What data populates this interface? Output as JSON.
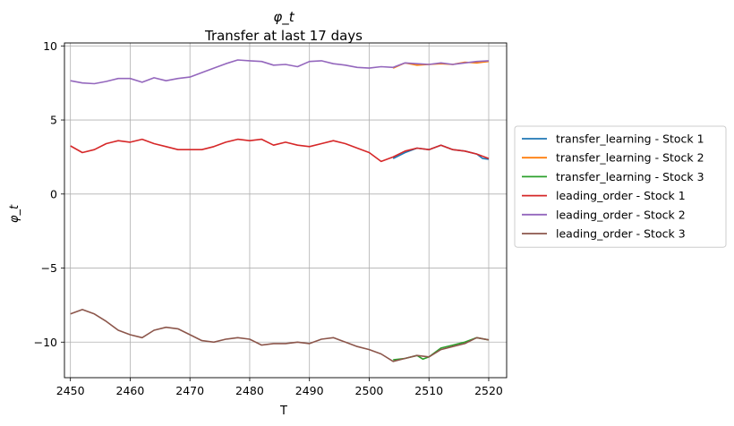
{
  "chart_data": {
    "type": "line",
    "title": "φ_t",
    "subtitle": "Transfer at last 17 days",
    "xlabel": "T",
    "ylabel": "φ_t",
    "xlim": [
      2449,
      2523
    ],
    "ylim": [
      -12.4,
      10.2
    ],
    "xticks": [
      2450,
      2460,
      2470,
      2480,
      2490,
      2500,
      2510,
      2520
    ],
    "yticks": [
      -10,
      -5,
      0,
      5,
      10
    ],
    "ytick_labels": [
      "−10",
      "−5",
      "0",
      "5",
      "10"
    ],
    "grid": true,
    "legend_position": "right-outside",
    "colors": {
      "transfer_learning_stock1": "#1f77b4",
      "transfer_learning_stock2": "#ff7f0e",
      "transfer_learning_stock3": "#2ca02c",
      "leading_order_stock1": "#d62728",
      "leading_order_stock2": "#9467bd",
      "leading_order_stock3": "#8c564b"
    },
    "x": [
      2450,
      2452,
      2454,
      2456,
      2458,
      2460,
      2462,
      2464,
      2466,
      2468,
      2470,
      2472,
      2474,
      2476,
      2478,
      2480,
      2482,
      2484,
      2486,
      2488,
      2490,
      2492,
      2494,
      2496,
      2498,
      2500,
      2502,
      2504,
      2506,
      2508,
      2510,
      2512,
      2514,
      2516,
      2518,
      2520
    ],
    "series": [
      {
        "name": "transfer_learning - Stock 1",
        "color": "#1f77b4",
        "x": [
          2504,
          2506,
          2508,
          2510,
          2512,
          2514,
          2516,
          2518,
          2519,
          2520
        ],
        "values": [
          2.4,
          2.8,
          3.1,
          3.0,
          3.3,
          3.0,
          2.9,
          2.7,
          2.4,
          2.35
        ]
      },
      {
        "name": "transfer_learning - Stock 2",
        "color": "#ff7f0e",
        "x": [
          2504,
          2506,
          2508,
          2510,
          2512,
          2514,
          2516,
          2518,
          2519,
          2520
        ],
        "values": [
          8.5,
          8.85,
          8.7,
          8.75,
          8.8,
          8.75,
          8.9,
          8.85,
          8.9,
          8.95
        ]
      },
      {
        "name": "transfer_learning - Stock 3",
        "color": "#2ca02c",
        "x": [
          2504,
          2506,
          2508,
          2509,
          2510,
          2512,
          2514,
          2516,
          2518,
          2520
        ],
        "values": [
          -11.2,
          -11.1,
          -10.9,
          -11.15,
          -11.0,
          -10.4,
          -10.2,
          -10.0,
          -9.7,
          -9.85
        ]
      },
      {
        "name": "leading_order - Stock 1",
        "color": "#d62728",
        "x": [
          2450,
          2452,
          2454,
          2456,
          2458,
          2460,
          2462,
          2464,
          2466,
          2468,
          2470,
          2472,
          2474,
          2476,
          2478,
          2480,
          2482,
          2484,
          2486,
          2488,
          2490,
          2492,
          2494,
          2496,
          2498,
          2500,
          2502,
          2504,
          2506,
          2508,
          2510,
          2512,
          2514,
          2516,
          2518,
          2520
        ],
        "values": [
          3.25,
          2.8,
          3.0,
          3.4,
          3.6,
          3.5,
          3.7,
          3.4,
          3.2,
          3.0,
          3.0,
          3.0,
          3.2,
          3.5,
          3.7,
          3.6,
          3.7,
          3.3,
          3.5,
          3.3,
          3.2,
          3.4,
          3.6,
          3.4,
          3.1,
          2.8,
          2.2,
          2.5,
          2.9,
          3.1,
          3.0,
          3.3,
          3.0,
          2.9,
          2.7,
          2.4
        ]
      },
      {
        "name": "leading_order - Stock 2",
        "color": "#9467bd",
        "x": [
          2450,
          2452,
          2454,
          2456,
          2458,
          2460,
          2462,
          2464,
          2466,
          2468,
          2470,
          2472,
          2474,
          2476,
          2478,
          2480,
          2482,
          2484,
          2486,
          2488,
          2490,
          2492,
          2494,
          2496,
          2498,
          2500,
          2502,
          2504,
          2506,
          2508,
          2510,
          2512,
          2514,
          2516,
          2518,
          2520
        ],
        "values": [
          7.65,
          7.5,
          7.45,
          7.6,
          7.8,
          7.8,
          7.55,
          7.85,
          7.65,
          7.8,
          7.9,
          8.2,
          8.5,
          8.8,
          9.05,
          9.0,
          8.95,
          8.7,
          8.75,
          8.6,
          8.95,
          9.0,
          8.8,
          8.7,
          8.55,
          8.5,
          8.6,
          8.55,
          8.85,
          8.8,
          8.75,
          8.85,
          8.75,
          8.85,
          8.95,
          9.0
        ]
      },
      {
        "name": "leading_order - Stock 3",
        "color": "#8c564b",
        "x": [
          2450,
          2452,
          2454,
          2456,
          2458,
          2460,
          2462,
          2464,
          2466,
          2468,
          2470,
          2472,
          2474,
          2476,
          2478,
          2480,
          2482,
          2484,
          2486,
          2488,
          2490,
          2492,
          2494,
          2496,
          2498,
          2500,
          2502,
          2504,
          2506,
          2508,
          2510,
          2512,
          2514,
          2516,
          2518,
          2520
        ],
        "values": [
          -8.1,
          -7.8,
          -8.1,
          -8.6,
          -9.2,
          -9.5,
          -9.7,
          -9.2,
          -9.0,
          -9.1,
          -9.5,
          -9.9,
          -10.0,
          -9.8,
          -9.7,
          -9.8,
          -10.2,
          -10.1,
          -10.1,
          -10.0,
          -10.1,
          -9.8,
          -9.7,
          -10.0,
          -10.3,
          -10.5,
          -10.8,
          -11.3,
          -11.1,
          -10.9,
          -11.0,
          -10.5,
          -10.3,
          -10.1,
          -9.7,
          -9.85
        ]
      }
    ]
  }
}
